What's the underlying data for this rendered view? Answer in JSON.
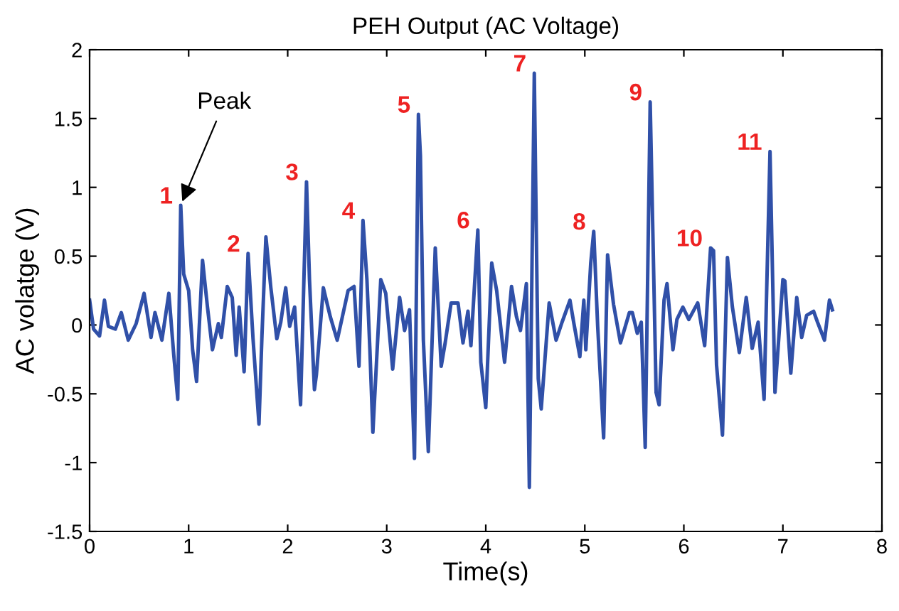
{
  "chart_data": {
    "type": "line",
    "title": "PEH Output (AC Voltage)",
    "xlabel": "Time(s)",
    "ylabel": "AC volatge (V)",
    "xlim": [
      0,
      8
    ],
    "ylim": [
      -1.5,
      2
    ],
    "xticks": [
      0,
      1,
      2,
      3,
      4,
      5,
      6,
      7,
      8
    ],
    "yticks": [
      -1.5,
      -1,
      -0.5,
      0,
      0.5,
      1,
      1.5,
      2
    ],
    "grid": false,
    "legend": false,
    "series": [
      {
        "color": "#3050a8",
        "x": [
          0.0,
          0.04,
          0.1,
          0.15,
          0.19,
          0.26,
          0.32,
          0.39,
          0.47,
          0.55,
          0.62,
          0.66,
          0.73,
          0.8,
          0.85,
          0.89,
          0.92,
          0.95,
          1.0,
          1.04,
          1.08,
          1.14,
          1.19,
          1.24,
          1.3,
          1.33,
          1.39,
          1.44,
          1.48,
          1.51,
          1.56,
          1.6,
          1.65,
          1.71,
          1.74,
          1.78,
          1.83,
          1.89,
          1.93,
          1.98,
          2.02,
          2.07,
          2.13,
          2.19,
          2.22,
          2.27,
          2.29,
          2.36,
          2.43,
          2.5,
          2.54,
          2.61,
          2.67,
          2.72,
          2.76,
          2.8,
          2.83,
          2.86,
          2.94,
          2.99,
          3.06,
          3.13,
          3.18,
          3.23,
          3.28,
          3.32,
          3.34,
          3.37,
          3.42,
          3.49,
          3.55,
          3.59,
          3.65,
          3.72,
          3.77,
          3.82,
          3.85,
          3.92,
          3.95,
          4.0,
          4.06,
          4.11,
          4.19,
          4.26,
          4.31,
          4.35,
          4.41,
          4.44,
          4.49,
          4.51,
          4.53,
          4.56,
          4.64,
          4.71,
          4.77,
          4.85,
          4.89,
          4.95,
          4.99,
          5.01,
          5.06,
          5.09,
          5.13,
          5.19,
          5.23,
          5.29,
          5.36,
          5.45,
          5.48,
          5.53,
          5.57,
          5.61,
          5.66,
          5.72,
          5.75,
          5.8,
          5.83,
          5.89,
          5.93,
          5.99,
          6.05,
          6.14,
          6.21,
          6.27,
          6.3,
          6.33,
          6.39,
          6.44,
          6.49,
          6.56,
          6.63,
          6.69,
          6.75,
          6.81,
          6.87,
          6.92,
          7.0,
          7.02,
          7.08,
          7.14,
          7.19,
          7.24,
          7.31,
          7.35,
          7.42,
          7.47,
          7.5
        ],
        "values": [
          0.18,
          -0.03,
          -0.08,
          0.18,
          -0.01,
          -0.03,
          0.09,
          -0.11,
          0.01,
          0.23,
          -0.09,
          0.09,
          -0.11,
          0.23,
          -0.22,
          -0.54,
          0.87,
          0.37,
          0.25,
          -0.18,
          -0.41,
          0.47,
          0.13,
          -0.18,
          0.01,
          -0.09,
          0.28,
          0.2,
          -0.22,
          0.13,
          -0.34,
          0.52,
          -0.1,
          -0.72,
          -0.08,
          0.64,
          0.27,
          -0.1,
          0.02,
          0.27,
          -0.01,
          0.13,
          -0.58,
          1.04,
          0.33,
          -0.47,
          -0.36,
          0.27,
          0.06,
          -0.11,
          0.02,
          0.25,
          0.28,
          -0.3,
          0.76,
          0.33,
          -0.18,
          -0.78,
          0.33,
          0.23,
          -0.32,
          0.2,
          -0.04,
          0.11,
          -0.97,
          1.53,
          1.23,
          -0.11,
          -0.92,
          0.56,
          -0.3,
          -0.13,
          0.16,
          0.16,
          -0.13,
          0.1,
          -0.15,
          0.69,
          -0.27,
          -0.6,
          0.45,
          0.25,
          -0.27,
          0.28,
          0.06,
          -0.04,
          0.3,
          -1.18,
          1.83,
          0.68,
          -0.39,
          -0.61,
          0.16,
          -0.11,
          0.02,
          0.18,
          0.01,
          -0.23,
          0.18,
          -0.18,
          0.45,
          0.68,
          -0.01,
          -0.82,
          0.51,
          0.15,
          -0.13,
          0.09,
          0.09,
          -0.06,
          0.02,
          -0.89,
          1.62,
          -0.49,
          -0.58,
          0.18,
          0.3,
          -0.18,
          0.04,
          0.13,
          0.04,
          0.16,
          -0.15,
          0.56,
          0.54,
          -0.29,
          -0.8,
          0.49,
          0.13,
          -0.2,
          0.2,
          -0.17,
          0.02,
          -0.54,
          1.26,
          -0.49,
          0.33,
          0.32,
          -0.35,
          0.2,
          -0.09,
          0.07,
          0.1,
          0.02,
          -0.11,
          0.18,
          0.11
        ]
      }
    ],
    "annotations": [
      {
        "text": "Peak",
        "x": 0.92,
        "y": 0.87
      },
      {
        "text": "1",
        "x": 0.92,
        "y": 0.87
      },
      {
        "text": "2",
        "x": 1.6,
        "y": 0.52
      },
      {
        "text": "3",
        "x": 2.19,
        "y": 1.04
      },
      {
        "text": "4",
        "x": 2.76,
        "y": 0.76
      },
      {
        "text": "5",
        "x": 3.32,
        "y": 1.53
      },
      {
        "text": "6",
        "x": 3.92,
        "y": 0.69
      },
      {
        "text": "7",
        "x": 4.49,
        "y": 1.83
      },
      {
        "text": "8",
        "x": 5.09,
        "y": 0.68
      },
      {
        "text": "9",
        "x": 5.66,
        "y": 1.62
      },
      {
        "text": "10",
        "x": 6.27,
        "y": 0.56
      },
      {
        "text": "11",
        "x": 6.87,
        "y": 1.26
      }
    ]
  }
}
